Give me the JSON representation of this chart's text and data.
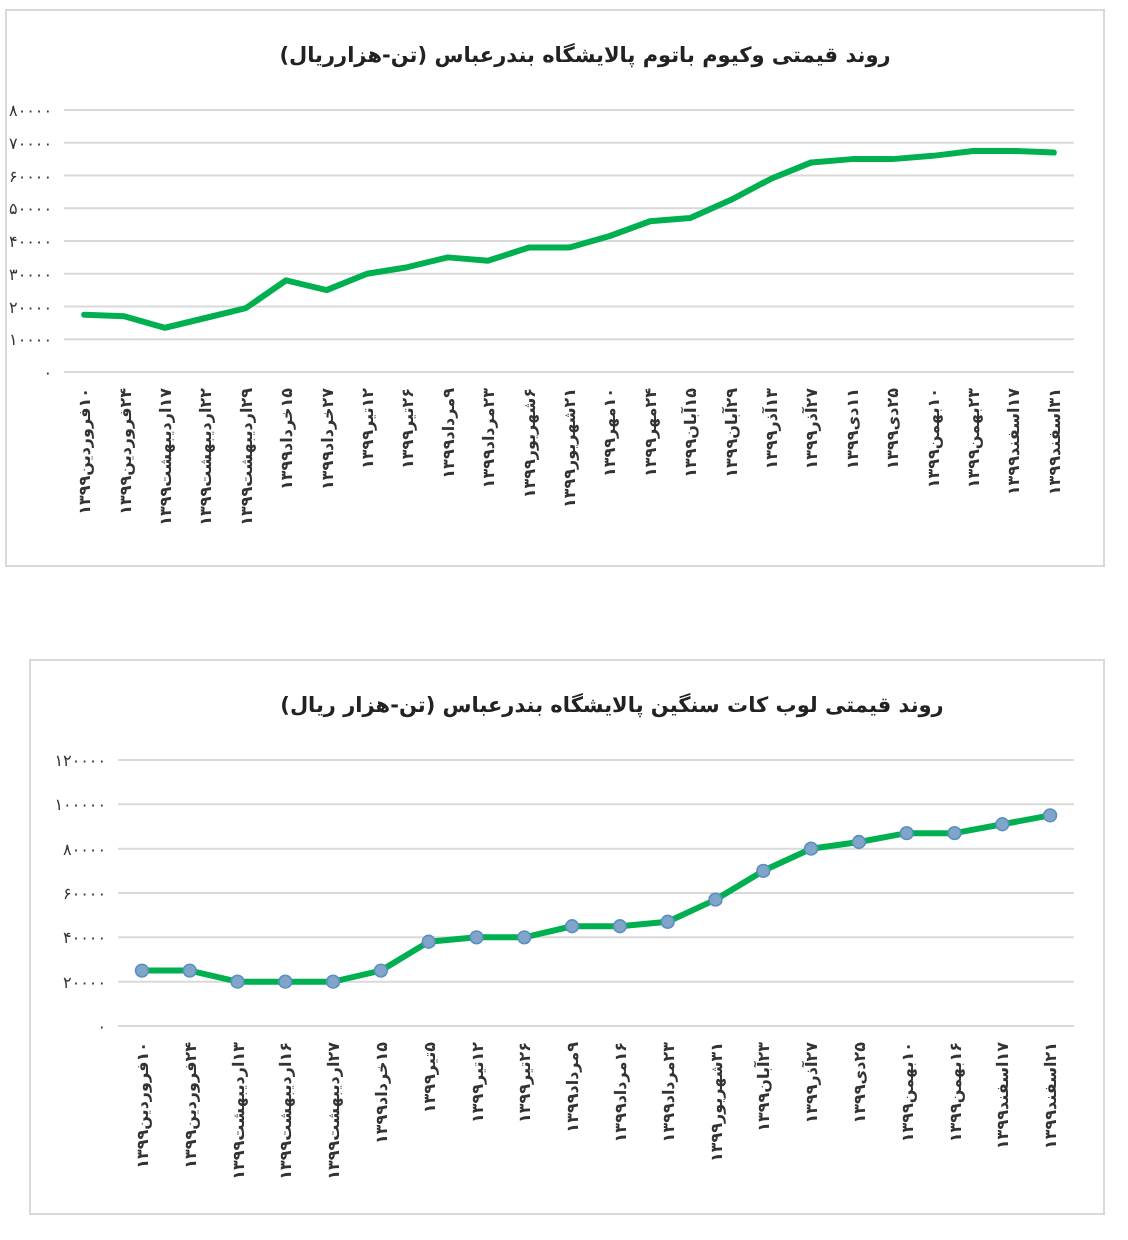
{
  "chart_data": [
    {
      "type": "line",
      "title": "روند قیمتی وکیوم باتوم پالایشگاه بندرعباس (تن-هزارریال)",
      "color": "#00b050",
      "categories": [
        "۱۰فروردین۱۳۹۹",
        "۲۴فروردین۱۳۹۹",
        "۱۷اردیبهشت۱۳۹۹",
        "۲۲اردیبهشت۱۳۹۹",
        "۲۹اردیبهشت۱۳۹۹",
        "۱۵خرداد۱۳۹۹",
        "۲۷خرداد۱۳۹۹",
        "۱۲تیر۱۳۹۹",
        "۲۶تیر۱۳۹۹",
        "۹مرداد۱۳۹۹",
        "۲۳مرداد۱۳۹۹",
        "۶شهریور۱۳۹۹",
        "۲۱شهریور۱۳۹۹",
        "۱۰مهر۱۳۹۹",
        "۲۴مهر۱۳۹۹",
        "۱۵آبان۱۳۹۹",
        "۲۹آبان۱۳۹۹",
        "۱۳آذر۱۳۹۹",
        "۲۷آذر۱۳۹۹",
        "۱۱دی۱۳۹۹",
        "۲۵دی۱۳۹۹",
        "۱۰بهمن۱۳۹۹",
        "۲۳بهمن۱۳۹۹",
        "۱۷اسفند۱۳۹۹",
        "۳۱اسفند۱۳۹۹"
      ],
      "values": [
        17500,
        17000,
        13500,
        16500,
        19500,
        28000,
        25000,
        30000,
        32000,
        35000,
        34000,
        38000,
        38000,
        41500,
        46000,
        47000,
        52500,
        59000,
        64000,
        65000,
        65000,
        66000,
        67500,
        67500,
        67000
      ],
      "ylim": [
        0,
        80000
      ],
      "yticks": [
        {
          "value": 0,
          "label": "۰"
        },
        {
          "value": 10000,
          "label": "۱۰۰۰۰"
        },
        {
          "value": 20000,
          "label": "۲۰۰۰۰"
        },
        {
          "value": 30000,
          "label": "۳۰۰۰۰"
        },
        {
          "value": 40000,
          "label": "۴۰۰۰۰"
        },
        {
          "value": 50000,
          "label": "۵۰۰۰۰"
        },
        {
          "value": 60000,
          "label": "۶۰۰۰۰"
        },
        {
          "value": 70000,
          "label": "۷۰۰۰۰"
        },
        {
          "value": 80000,
          "label": "۸۰۰۰۰"
        }
      ],
      "grid": "y"
    },
    {
      "type": "line",
      "title": "روند قیمتی لوب کات سنگین پالایشگاه بندرعباس (تن-هزار ریال)",
      "color": "#00b050",
      "marker": "circle",
      "categories": [
        "۱۰فروردین۱۳۹۹",
        "۲۴فروردین۱۳۹۹",
        "۱۳اردیبهشت۱۳۹۹",
        "۱۶اردیبهشت۱۳۹۹",
        "۲۷اردیبهشت۱۳۹۹",
        "۱۵خرداد۱۳۹۹",
        "۵تیر۱۳۹۹",
        "۱۲تیر۱۳۹۹",
        "۲۶تیر۱۳۹۹",
        "۹مرداد۱۳۹۹",
        "۱۶مرداد۱۳۹۹",
        "۲۳مرداد۱۳۹۹",
        "۳۱شهریور۱۳۹۹",
        "۲۳آبان۱۳۹۹",
        "۲۷آذر۱۳۹۹",
        "۲۵دی۱۳۹۹",
        "۱۰بهمن۱۳۹۹",
        "۱۶بهمن۱۳۹۹",
        "۱۷اسفند۱۳۹۹",
        "۲۱اسفند۱۳۹۹"
      ],
      "values": [
        25000,
        25000,
        20000,
        20000,
        20000,
        25000,
        38000,
        40000,
        40000,
        45000,
        45000,
        47000,
        57000,
        70000,
        80000,
        83000,
        87000,
        87000,
        91000,
        95000
      ],
      "ylim": [
        0,
        120000
      ],
      "yticks": [
        {
          "value": 0,
          "label": "۰"
        },
        {
          "value": 20000,
          "label": "۲۰۰۰۰"
        },
        {
          "value": 40000,
          "label": "۴۰۰۰۰"
        },
        {
          "value": 60000,
          "label": "۶۰۰۰۰"
        },
        {
          "value": 80000,
          "label": "۸۰۰۰۰"
        },
        {
          "value": 100000,
          "label": "۱۰۰۰۰۰"
        },
        {
          "value": 120000,
          "label": "۱۲۰۰۰۰"
        }
      ],
      "grid": "y"
    }
  ]
}
